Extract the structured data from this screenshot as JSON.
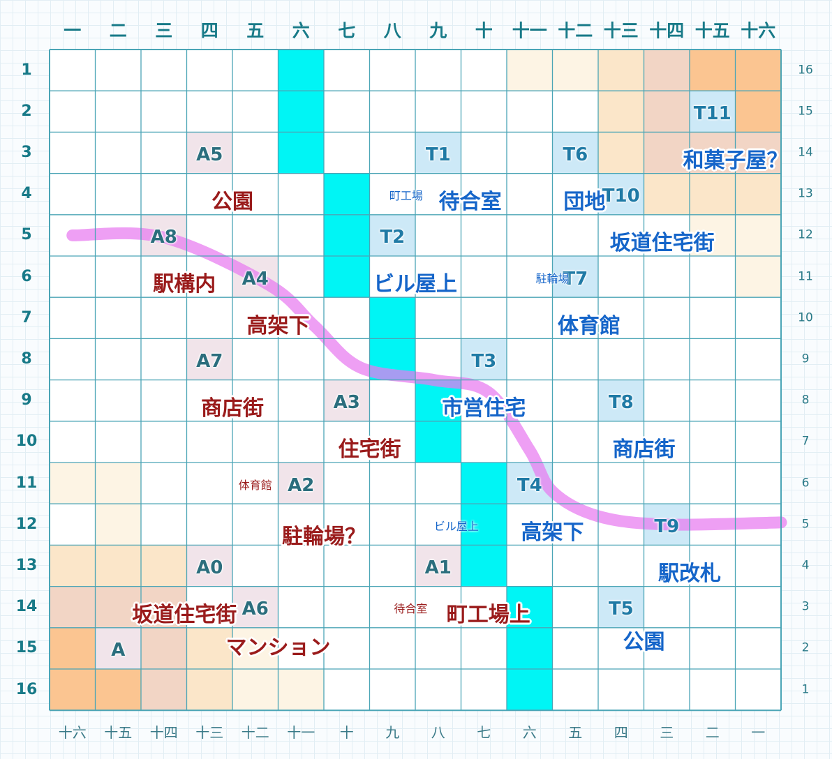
{
  "colors": {
    "grid_line": "#4ba5b6",
    "track": "#00f5f5",
    "route": "#e77af0",
    "a_cell": "#f1e4ea",
    "t_cell": "#cde9f7",
    "a_text": "#9a1b1b",
    "t_text": "#1565c9",
    "shade_1": "#fdf4e4",
    "shade_2": "#fbe6c9",
    "shade_3": "#f2d5c5",
    "shade_4": "#fbc591"
  },
  "top_headers": [
    "一",
    "二",
    "三",
    "四",
    "五",
    "六",
    "七",
    "八",
    "九",
    "十",
    "十一",
    "十二",
    "十三",
    "十四",
    "十五",
    "十六"
  ],
  "bottom_headers": [
    "十六",
    "十五",
    "十四",
    "十三",
    "十二",
    "十一",
    "十",
    "九",
    "八",
    "七",
    "六",
    "五",
    "四",
    "三",
    "二",
    "一"
  ],
  "left_headers": [
    "1",
    "2",
    "3",
    "4",
    "5",
    "6",
    "7",
    "8",
    "9",
    "10",
    "11",
    "12",
    "13",
    "14",
    "15",
    "16"
  ],
  "right_headers": [
    "16",
    "15",
    "14",
    "13",
    "12",
    "11",
    "10",
    "9",
    "8",
    "7",
    "6",
    "5",
    "4",
    "3",
    "2",
    "1"
  ],
  "track_cells": [
    [
      6,
      1
    ],
    [
      6,
      2
    ],
    [
      6,
      3
    ],
    [
      7,
      4
    ],
    [
      7,
      5
    ],
    [
      7,
      6
    ],
    [
      8,
      7
    ],
    [
      8,
      8
    ],
    [
      9,
      9
    ],
    [
      9,
      10
    ],
    [
      10,
      11
    ],
    [
      10,
      12
    ],
    [
      10,
      13
    ],
    [
      11,
      14
    ],
    [
      11,
      15
    ],
    [
      11,
      16
    ]
  ],
  "shaded_cells": [
    [
      11,
      1,
      1
    ],
    [
      12,
      1,
      1
    ],
    [
      13,
      1,
      2
    ],
    [
      14,
      1,
      3
    ],
    [
      15,
      1,
      4
    ],
    [
      16,
      1,
      4
    ],
    [
      13,
      2,
      2
    ],
    [
      14,
      2,
      3
    ],
    [
      16,
      2,
      4
    ],
    [
      13,
      3,
      2
    ],
    [
      14,
      3,
      3
    ],
    [
      15,
      3,
      3
    ],
    [
      16,
      3,
      3
    ],
    [
      14,
      4,
      2
    ],
    [
      15,
      4,
      2
    ],
    [
      16,
      4,
      2
    ],
    [
      15,
      5,
      1
    ],
    [
      16,
      5,
      1
    ],
    [
      16,
      6,
      1
    ],
    [
      1,
      11,
      1
    ],
    [
      2,
      11,
      1
    ],
    [
      2,
      12,
      1
    ],
    [
      1,
      13,
      2
    ],
    [
      2,
      13,
      2
    ],
    [
      3,
      13,
      2
    ],
    [
      1,
      14,
      3
    ],
    [
      2,
      14,
      3
    ],
    [
      3,
      14,
      3
    ],
    [
      1,
      15,
      4
    ],
    [
      2,
      15,
      3
    ],
    [
      3,
      15,
      3
    ],
    [
      4,
      15,
      2
    ],
    [
      5,
      15,
      1
    ],
    [
      1,
      16,
      4
    ],
    [
      2,
      16,
      4
    ],
    [
      3,
      16,
      3
    ],
    [
      4,
      16,
      2
    ],
    [
      5,
      16,
      1
    ],
    [
      6,
      16,
      1
    ]
  ],
  "route_points": [
    [
      1,
      5
    ],
    [
      3,
      5.05
    ],
    [
      5.3,
      6.2
    ],
    [
      6.3,
      7.2
    ],
    [
      7.3,
      8.2
    ],
    [
      8.9,
      8.5
    ],
    [
      10.1,
      8.8
    ],
    [
      11,
      10.2
    ],
    [
      11.5,
      11.2
    ],
    [
      12.5,
      11.8
    ],
    [
      14,
      12
    ],
    [
      16.5,
      11.95
    ]
  ],
  "markers": [
    {
      "id": "a0",
      "side": "A",
      "code": "A0",
      "col": 4,
      "row": 13,
      "name": "坂道住宅街",
      "name_x": 3.45,
      "name_y": 14.2
    },
    {
      "id": "a",
      "side": "A",
      "code": "A",
      "col": 2,
      "row": 15,
      "name": "",
      "name_x": 0,
      "name_y": 0
    },
    {
      "id": "a1",
      "side": "A",
      "code": "A1",
      "col": 9,
      "row": 13,
      "name": "町工場上",
      "name_x": 10.1,
      "name_y": 14.2,
      "note": "待合室",
      "note_x": 8.4,
      "note_y": 14.05
    },
    {
      "id": "a2",
      "side": "A",
      "code": "A2",
      "col": 6,
      "row": 11,
      "name": "駐輪場？",
      "name_x": 6.5,
      "name_y": 12.3,
      "note": "体育館",
      "note_x": 5.0,
      "note_y": 11.05
    },
    {
      "id": "a3",
      "side": "A",
      "code": "A3",
      "col": 7,
      "row": 9,
      "name": "住宅街",
      "name_x": 7.5,
      "name_y": 10.2
    },
    {
      "id": "a4",
      "side": "A",
      "code": "A4",
      "col": 5,
      "row": 6,
      "name": "高架下",
      "name_x": 5.5,
      "name_y": 7.2
    },
    {
      "id": "a5",
      "side": "A",
      "code": "A5",
      "col": 4,
      "row": 3,
      "name": "公園",
      "name_x": 4.5,
      "name_y": 4.2
    },
    {
      "id": "a6",
      "side": "A",
      "code": "A6",
      "col": 5,
      "row": 14,
      "name": "マンション",
      "name_x": 5.5,
      "name_y": 15.0
    },
    {
      "id": "a7",
      "side": "A",
      "code": "A7",
      "col": 4,
      "row": 8,
      "name": "商店街",
      "name_x": 4.5,
      "name_y": 9.2
    },
    {
      "id": "a8",
      "side": "A",
      "code": "A8",
      "col": 3,
      "row": 5,
      "name": "駅構内",
      "name_x": 3.45,
      "name_y": 6.2
    },
    {
      "id": "t1",
      "side": "T",
      "code": "T1",
      "col": 9,
      "row": 3,
      "name": "待合室",
      "name_x": 9.7,
      "name_y": 4.2
    },
    {
      "id": "t2",
      "side": "T",
      "code": "T2",
      "col": 8,
      "row": 5,
      "name": "ビル屋上",
      "name_x": 8.5,
      "name_y": 6.2,
      "note": "町工場",
      "note_x": 8.3,
      "note_y": 4.05
    },
    {
      "id": "t3",
      "side": "T",
      "code": "T3",
      "col": 10,
      "row": 8,
      "name": "市営住宅",
      "name_x": 10.0,
      "name_y": 9.2
    },
    {
      "id": "t4",
      "side": "T",
      "code": "T4",
      "col": 11,
      "row": 11,
      "name": "高架下",
      "name_x": 11.5,
      "name_y": 12.2,
      "note": "ビル屋上",
      "note_x": 9.4,
      "note_y": 12.05
    },
    {
      "id": "t5",
      "side": "T",
      "code": "T5",
      "col": 13,
      "row": 14,
      "name": "公園",
      "name_x": 13.5,
      "name_y": 14.85
    },
    {
      "id": "t6",
      "side": "T",
      "code": "T6",
      "col": 12,
      "row": 3,
      "name": "団地",
      "name_x": 12.2,
      "name_y": 4.2
    },
    {
      "id": "t7",
      "side": "T",
      "code": "T7",
      "col": 12,
      "row": 6,
      "name": "体育館",
      "name_x": 12.3,
      "name_y": 7.2,
      "note": "駐輪場",
      "note_x": 11.5,
      "note_y": 6.05
    },
    {
      "id": "t8",
      "side": "T",
      "code": "T8",
      "col": 13,
      "row": 9,
      "name": "商店街",
      "name_x": 13.5,
      "name_y": 10.2
    },
    {
      "id": "t9",
      "side": "T",
      "code": "T9",
      "col": 14,
      "row": 12,
      "name": "駅改札",
      "name_x": 14.5,
      "name_y": 13.2
    },
    {
      "id": "t10",
      "side": "T",
      "code": "T10",
      "col": 13,
      "row": 4,
      "name": "坂道住宅街",
      "name_x": 13.9,
      "name_y": 5.2
    },
    {
      "id": "t11",
      "side": "T",
      "code": "T11",
      "col": 15,
      "row": 2,
      "name": "和菓子屋？",
      "name_x": 15.5,
      "name_y": 3.2
    }
  ]
}
